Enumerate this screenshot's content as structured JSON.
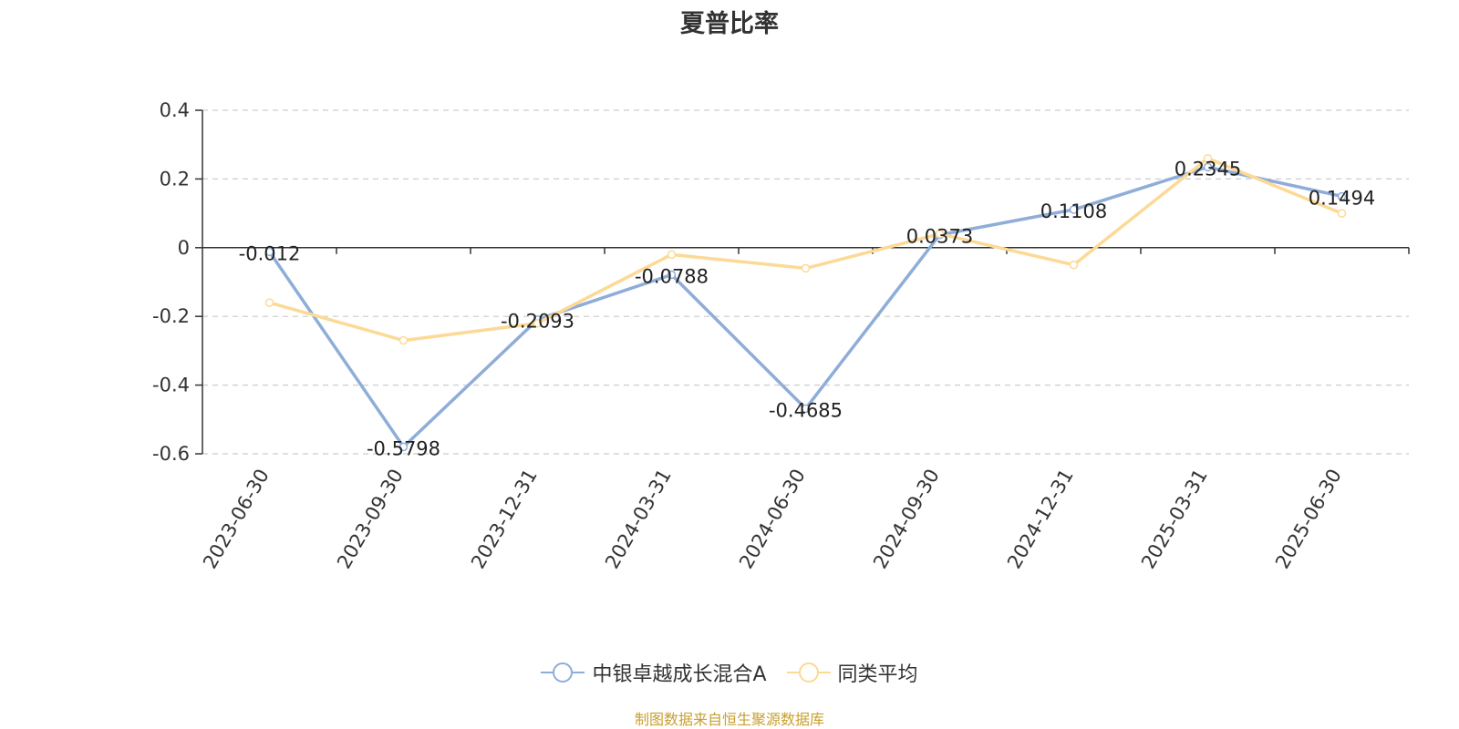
{
  "source_note": "制图数据来自恒生聚源数据库",
  "colors": {
    "series_a": "#8eadd8",
    "series_b": "#fdd996",
    "grid": "#cccccc",
    "axis": "#333333",
    "source": "#c8a031"
  },
  "chart_data": {
    "type": "line",
    "title": "夏普比率",
    "xlabel": "",
    "ylabel": "",
    "x": [
      "2023-06-30",
      "2023-09-30",
      "2023-12-31",
      "2024-03-31",
      "2024-06-30",
      "2024-09-30",
      "2024-12-31",
      "2025-03-31",
      "2025-06-30"
    ],
    "ylim": [
      -0.6,
      0.4
    ],
    "yticks": [
      "0.4",
      "0.2",
      "0",
      "-0.2",
      "-0.4",
      "-0.6"
    ],
    "ytick_values": [
      0.4,
      0.2,
      0,
      -0.2,
      -0.4,
      -0.6
    ],
    "grid": true,
    "legend_position": "bottom-center",
    "series": [
      {
        "name": "中银卓越成长混合A",
        "values": [
          -0.012,
          -0.5798,
          -0.2093,
          -0.0788,
          -0.4685,
          0.0373,
          0.1108,
          0.2345,
          0.1494
        ],
        "labels": [
          "-0.012",
          "-0.5798",
          "-0.2093",
          "-0.0788",
          "-0.4685",
          "0.0373",
          "0.1108",
          "0.2345",
          "0.1494"
        ]
      },
      {
        "name": "同类平均",
        "values": [
          -0.16,
          -0.27,
          -0.22,
          -0.02,
          -0.06,
          0.04,
          -0.05,
          0.26,
          0.1
        ]
      }
    ]
  }
}
